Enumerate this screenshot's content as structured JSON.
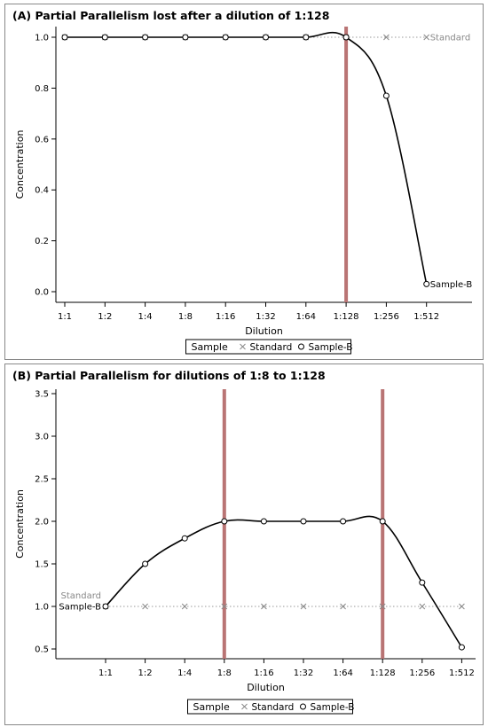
{
  "legend": {
    "title": "Sample",
    "items": [
      {
        "name": "Standard",
        "marker": "x"
      },
      {
        "name": "Sample-B",
        "marker": "o"
      }
    ]
  },
  "chart_data": [
    {
      "type": "line",
      "title": "(A) Partial Parallelism lost after a dilution of 1:128",
      "xlabel": "Dilution",
      "ylabel": "Concentration",
      "categories": [
        "1:1",
        "1:2",
        "1:4",
        "1:8",
        "1:16",
        "1:32",
        "1:64",
        "1:128",
        "1:256",
        "1:512"
      ],
      "ylim": [
        0,
        1.0
      ],
      "yticks": [
        "0.0",
        "0.2",
        "0.4",
        "0.6",
        "0.8",
        "1.0"
      ],
      "yticks_values": [
        0,
        0.2,
        0.4,
        0.6,
        0.8,
        1.0
      ],
      "reference_lines": [
        "1:128"
      ],
      "series": [
        {
          "name": "Standard",
          "values": [
            1,
            1,
            1,
            1,
            1,
            1,
            1,
            1,
            1,
            1
          ],
          "end_label": "Standard"
        },
        {
          "name": "Sample-B",
          "values": [
            1,
            1,
            1,
            1,
            1,
            1,
            1,
            1,
            0.77,
            0.03
          ],
          "end_label": "Sample-B"
        }
      ],
      "legend_position": "bottom"
    },
    {
      "type": "line",
      "title": "(B) Partial Parallelism for dilutions of 1:8 to 1:128",
      "xlabel": "Dilution",
      "ylabel": "Concentration",
      "categories": [
        "1:1",
        "1:2",
        "1:4",
        "1:8",
        "1:16",
        "1:32",
        "1:64",
        "1:128",
        "1:256",
        "1:512"
      ],
      "ylim": [
        0.5,
        3.5
      ],
      "yticks": [
        "0.5",
        "1.0",
        "1.5",
        "2.0",
        "2.5",
        "3.0",
        "3.5"
      ],
      "yticks_values": [
        0.5,
        1.0,
        1.5,
        2.0,
        2.5,
        3.0,
        3.5
      ],
      "reference_lines": [
        "1:8",
        "1:128"
      ],
      "series": [
        {
          "name": "Standard",
          "values": [
            1,
            1,
            1,
            1,
            1,
            1,
            1,
            1,
            1,
            1
          ],
          "start_label": "Standard"
        },
        {
          "name": "Sample-B",
          "values": [
            1,
            1.5,
            1.8,
            2.0,
            2.0,
            2.0,
            2.0,
            2.0,
            1.28,
            0.52
          ],
          "start_label": "Sample-B"
        }
      ],
      "legend_position": "bottom"
    }
  ]
}
